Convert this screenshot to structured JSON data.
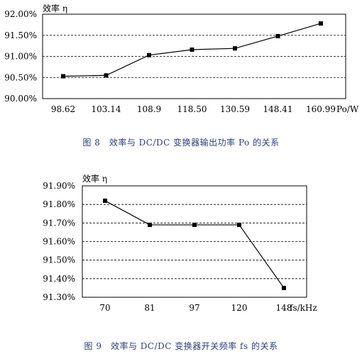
{
  "chart_data": [
    {
      "type": "line",
      "ylabel": "效率 η",
      "xlabel": "Po/W",
      "categories": [
        "98.62",
        "103.14",
        "108.9",
        "118.50",
        "130.59",
        "148.41",
        "160.99"
      ],
      "series": [
        {
          "values": [
            90.53,
            90.55,
            91.03,
            91.16,
            91.19,
            91.48,
            91.78
          ]
        }
      ],
      "ylim": [
        90.0,
        92.0
      ],
      "yticks": [
        "90.00%",
        "90.50%",
        "91.00%",
        "91.50%",
        "92.00%"
      ],
      "grid": true,
      "caption": "图 8　效率与 DC/DC 变换器输出功率 Po 的关系"
    },
    {
      "type": "line",
      "ylabel": "效率 η",
      "xlabel": "fs/kHz",
      "categories": [
        "70",
        "81",
        "97",
        "120",
        "148"
      ],
      "series": [
        {
          "values": [
            91.82,
            91.69,
            91.69,
            91.69,
            91.35
          ]
        }
      ],
      "ylim": [
        91.3,
        91.9
      ],
      "yticks": [
        "91.30%",
        "91.40%",
        "91.50%",
        "91.60%",
        "91.70%",
        "91.80%",
        "91.90%"
      ],
      "grid": true,
      "caption": "图 9　效率与 DC/DC 变换器开关频率 fs 的关系"
    }
  ]
}
